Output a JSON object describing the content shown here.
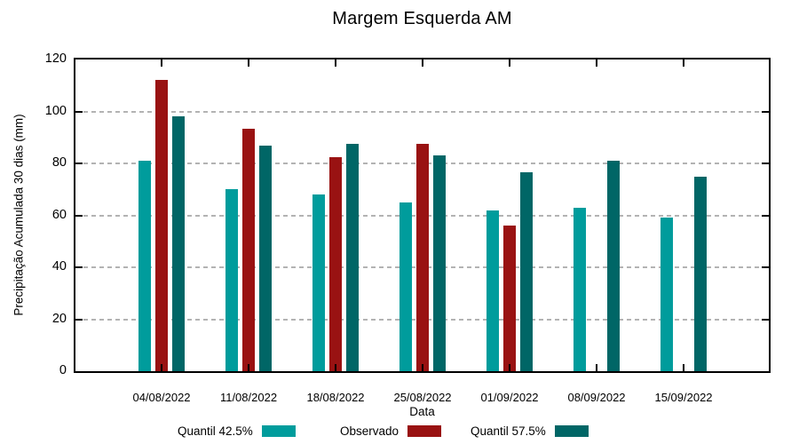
{
  "chart_data": {
    "type": "bar",
    "title": "Margem Esquerda AM",
    "xlabel": "Data",
    "ylabel": "Precipitação Acumulada 30 dias (mm)",
    "ylim": [
      0,
      120
    ],
    "yticks": [
      0,
      20,
      40,
      60,
      80,
      100,
      120
    ],
    "grid": "horizontal-dashed",
    "legend_position": "bottom",
    "frame": "full-box-with-mirrored-ticks",
    "categories": [
      "04/08/2022",
      "11/08/2022",
      "18/08/2022",
      "25/08/2022",
      "01/09/2022",
      "08/09/2022",
      "15/09/2022"
    ],
    "series": [
      {
        "name": "Quantil 42.5%",
        "color": "#009c9c",
        "values": [
          81,
          70,
          68,
          65,
          62,
          63,
          59
        ]
      },
      {
        "name": "Observado",
        "color": "#991212",
        "values": [
          112,
          93.5,
          82.5,
          87.5,
          56,
          null,
          null
        ]
      },
      {
        "name": "Quantil 57.5%",
        "color": "#006666",
        "values": [
          98,
          87,
          87.5,
          83,
          76.5,
          81,
          75
        ]
      }
    ]
  }
}
